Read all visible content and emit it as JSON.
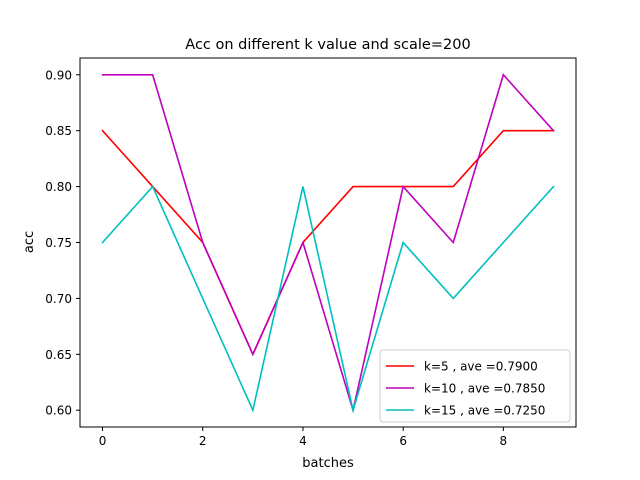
{
  "chart_data": {
    "type": "line",
    "title": "Acc on different k value and scale=200",
    "xlabel": "batches",
    "ylabel": "acc",
    "x": [
      0,
      1,
      2,
      3,
      4,
      5,
      6,
      7,
      8,
      9
    ],
    "xlim": [
      -0.45,
      9.45
    ],
    "ylim": [
      0.585,
      0.915
    ],
    "xticks": [
      0,
      2,
      4,
      6,
      8
    ],
    "yticks": [
      0.6,
      0.65,
      0.7,
      0.75,
      0.8,
      0.85,
      0.9
    ],
    "ytick_labels": [
      "0.60",
      "0.65",
      "0.70",
      "0.75",
      "0.80",
      "0.85",
      "0.90"
    ],
    "grid": false,
    "legend_position": "lower-right",
    "series": [
      {
        "name": "k=5 , ave =0.7900",
        "color": "#ff0000",
        "values": [
          0.85,
          0.8,
          0.75,
          0.65,
          0.75,
          0.8,
          0.8,
          0.8,
          0.85,
          0.85
        ]
      },
      {
        "name": "k=10 , ave =0.7850",
        "color": "#bf00bf",
        "values": [
          0.9,
          0.9,
          0.75,
          0.65,
          0.75,
          0.6,
          0.8,
          0.75,
          0.9,
          0.85
        ]
      },
      {
        "name": "k=15 , ave =0.7250",
        "color": "#00bfbf",
        "values": [
          0.75,
          0.8,
          0.7,
          0.6,
          0.8,
          0.6,
          0.75,
          0.7,
          0.75,
          0.8
        ]
      }
    ]
  }
}
